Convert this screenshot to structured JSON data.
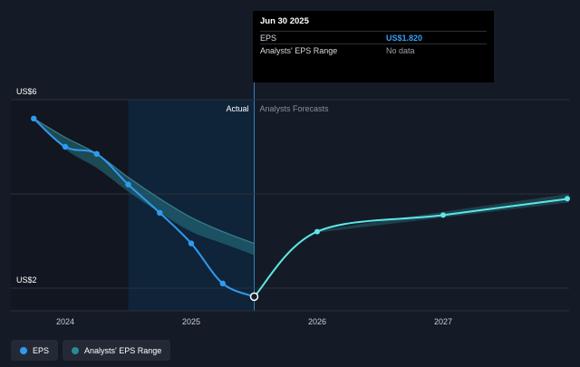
{
  "tooltip": {
    "date": "Jun 30 2025",
    "rows": [
      {
        "label": "EPS",
        "value": "US$1.820"
      },
      {
        "label": "Analysts' EPS Range",
        "value": "No data"
      }
    ]
  },
  "legend": {
    "items": [
      {
        "label": "EPS",
        "color": "#2f9bf0"
      },
      {
        "label": "Analysts' EPS Range",
        "color": "#2a8a96"
      }
    ]
  },
  "chart_data": {
    "type": "line",
    "y_axis_labels": [
      "US$6",
      "US$2"
    ],
    "ylim": [
      2,
      6
    ],
    "x_ticks": [
      {
        "label": "2024",
        "x": 2024.0
      },
      {
        "label": "2025",
        "x": 2025.0
      },
      {
        "label": "2026",
        "x": 2026.0
      },
      {
        "label": "2027",
        "x": 2027.0
      }
    ],
    "region_labels": {
      "actual": "Actual",
      "forecast": "Analysts Forecasts"
    },
    "actual_start": 2024.5,
    "forecast_start": 2025.5,
    "series": [
      {
        "name": "EPS",
        "kind": "actual",
        "color": "#2f9bf0",
        "points": [
          {
            "x": 2023.75,
            "y": 5.6
          },
          {
            "x": 2024.0,
            "y": 5.0
          },
          {
            "x": 2024.25,
            "y": 4.85
          },
          {
            "x": 2024.5,
            "y": 4.2
          },
          {
            "x": 2024.75,
            "y": 3.6
          },
          {
            "x": 2025.0,
            "y": 2.95
          },
          {
            "x": 2025.25,
            "y": 2.1
          },
          {
            "x": 2025.5,
            "y": 1.82
          }
        ]
      },
      {
        "name": "EPS",
        "kind": "forecast",
        "color": "#5ee6e6",
        "points": [
          {
            "x": 2025.5,
            "y": 1.82
          },
          {
            "x": 2026.0,
            "y": 3.2
          },
          {
            "x": 2027.0,
            "y": 3.55
          },
          {
            "x": 2028.0,
            "y": 3.9
          }
        ]
      },
      {
        "name": "Analysts' EPS Range",
        "kind": "range",
        "color": "#2a8a96",
        "upper": [
          {
            "x": 2023.75,
            "y": 5.6
          },
          {
            "x": 2024.0,
            "y": 5.2
          },
          {
            "x": 2024.25,
            "y": 4.85
          },
          {
            "x": 2024.5,
            "y": 4.35
          },
          {
            "x": 2024.75,
            "y": 3.9
          },
          {
            "x": 2025.0,
            "y": 3.5
          },
          {
            "x": 2025.25,
            "y": 3.2
          },
          {
            "x": 2025.5,
            "y": 2.95
          }
        ],
        "lower": [
          {
            "x": 2023.75,
            "y": 5.6
          },
          {
            "x": 2024.0,
            "y": 4.95
          },
          {
            "x": 2024.25,
            "y": 4.55
          },
          {
            "x": 2024.5,
            "y": 4.05
          },
          {
            "x": 2024.75,
            "y": 3.6
          },
          {
            "x": 2025.0,
            "y": 3.2
          },
          {
            "x": 2025.25,
            "y": 2.95
          },
          {
            "x": 2025.5,
            "y": 2.7
          }
        ],
        "forecast_upper": [
          {
            "x": 2026.0,
            "y": 3.22
          },
          {
            "x": 2027.0,
            "y": 3.62
          },
          {
            "x": 2028.0,
            "y": 4.0
          }
        ],
        "forecast_lower": [
          {
            "x": 2026.0,
            "y": 3.18
          },
          {
            "x": 2027.0,
            "y": 3.5
          },
          {
            "x": 2028.0,
            "y": 3.82
          }
        ]
      }
    ],
    "grid": true,
    "legend_position": "bottom-left"
  }
}
